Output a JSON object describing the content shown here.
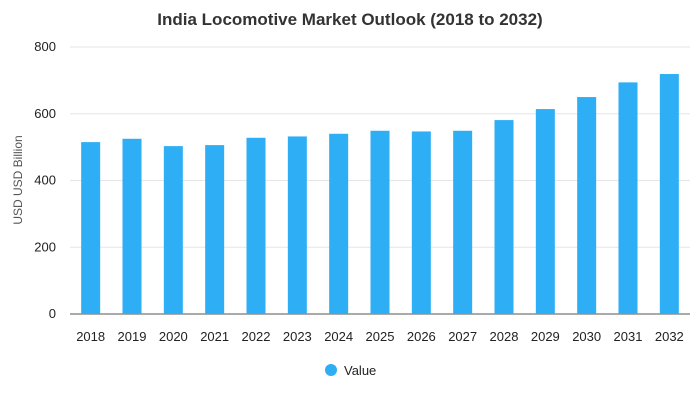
{
  "chart_data": {
    "type": "bar",
    "title": "India Locomotive Market Outlook (2018 to 2032)",
    "xlabel": "",
    "ylabel": "USD USD Billion",
    "categories": [
      "2018",
      "2019",
      "2020",
      "2021",
      "2022",
      "2023",
      "2024",
      "2025",
      "2026",
      "2027",
      "2028",
      "2029",
      "2030",
      "2031",
      "2032"
    ],
    "series": [
      {
        "name": "Value",
        "values": [
          515,
          525,
          503,
          506,
          528,
          532,
          540,
          549,
          547,
          549,
          581,
          614,
          650,
          694,
          719
        ],
        "color": "#2eaef5"
      }
    ],
    "ylim": [
      0,
      800
    ],
    "yticks": [
      0,
      200,
      400,
      600,
      800
    ],
    "grid": true,
    "legend": "bottom-center"
  }
}
